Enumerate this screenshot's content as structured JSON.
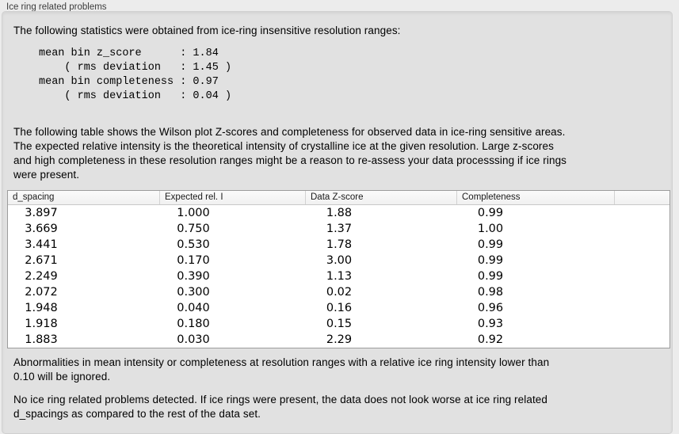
{
  "panel": {
    "title": "Ice ring related problems"
  },
  "intro": "The following statistics were obtained from ice-ring insensitive resolution ranges:",
  "stats_block": {
    "lines": [
      "mean bin z_score      : 1.84",
      "    ( rms deviation   : 1.45 )",
      "mean bin completeness : 0.97",
      "    ( rms deviation   : 0.04 )"
    ]
  },
  "table_description": {
    "lines": [
      "The following table shows the Wilson plot Z-scores and completeness for observed data in ice-ring sensitive areas.",
      "The expected relative intensity is the theoretical intensity of crystalline ice at the given resolution. Large z-scores",
      "and high completeness in these resolution ranges might be a reason to re-assess your data processsing if ice rings",
      "were present."
    ]
  },
  "table": {
    "columns": [
      "d_spacing",
      "Expected rel. I",
      "Data Z-score",
      "Completeness",
      ""
    ],
    "rows": [
      {
        "d_spacing": "3.897",
        "expected_rel_i": "1.000",
        "data_z_score": "1.88",
        "completeness": "0.99"
      },
      {
        "d_spacing": "3.669",
        "expected_rel_i": "0.750",
        "data_z_score": "1.37",
        "completeness": "1.00"
      },
      {
        "d_spacing": "3.441",
        "expected_rel_i": "0.530",
        "data_z_score": "1.78",
        "completeness": "0.99"
      },
      {
        "d_spacing": "2.671",
        "expected_rel_i": "0.170",
        "data_z_score": "3.00",
        "completeness": "0.99"
      },
      {
        "d_spacing": "2.249",
        "expected_rel_i": "0.390",
        "data_z_score": "1.13",
        "completeness": "0.99"
      },
      {
        "d_spacing": "2.072",
        "expected_rel_i": "0.300",
        "data_z_score": "0.02",
        "completeness": "0.98"
      },
      {
        "d_spacing": "1.948",
        "expected_rel_i": "0.040",
        "data_z_score": "0.16",
        "completeness": "0.96"
      },
      {
        "d_spacing": "1.918",
        "expected_rel_i": "0.180",
        "data_z_score": "0.15",
        "completeness": "0.93"
      },
      {
        "d_spacing": "1.883",
        "expected_rel_i": "0.030",
        "data_z_score": "2.29",
        "completeness": "0.92"
      }
    ]
  },
  "ignore_note": {
    "lines": [
      "Abnormalities in mean intensity or completeness at resolution ranges with a relative ice ring intensity lower than",
      "0.10 will be ignored."
    ]
  },
  "conclusion": {
    "lines": [
      "No ice ring related problems detected. If ice rings were present, the data does not look worse at ice ring related",
      "d_spacings as compared to the rest of the data set."
    ]
  },
  "colors": {
    "page_bg": "#ececec",
    "box_bg": "#e1e1e1",
    "table_bg": "#ffffff",
    "header_bg": "#f3f3f3",
    "border": "#9c9c9c"
  }
}
